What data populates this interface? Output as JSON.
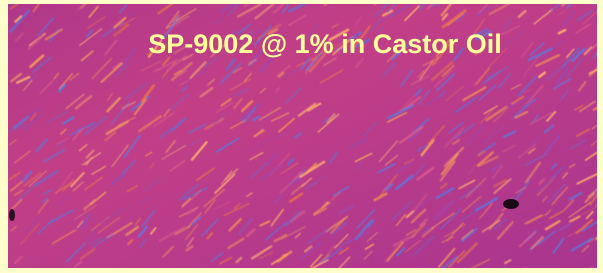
{
  "title": "SP-9002 @ 1% in Castor Oil"
}
